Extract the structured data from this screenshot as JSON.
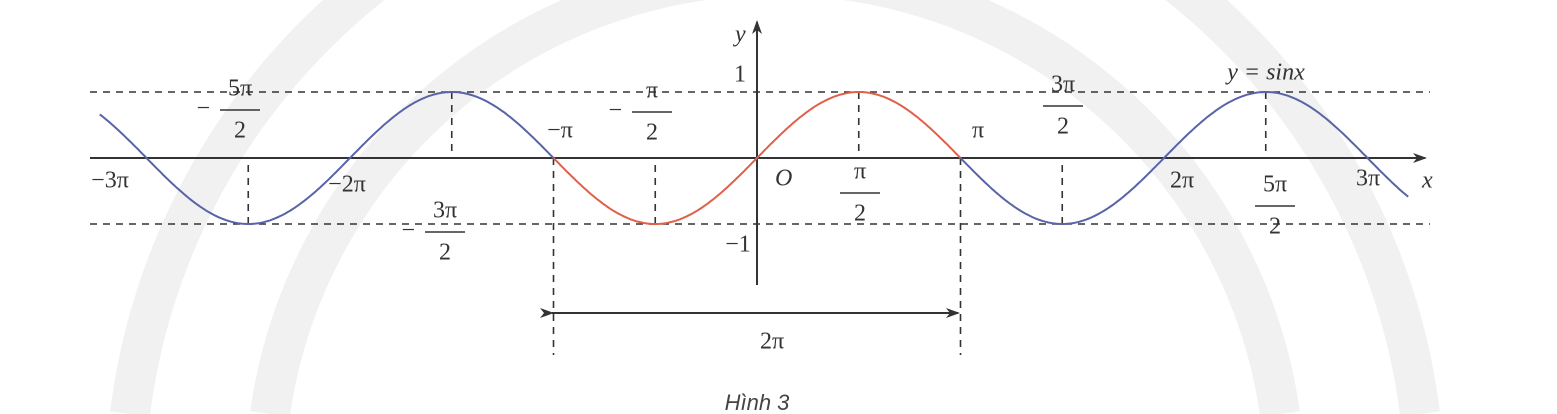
{
  "axes": {
    "x": "x",
    "y": "y",
    "origin": "O"
  },
  "y_labels": [
    "1",
    "−1"
  ],
  "x_labels": [
    "−3π",
    "−2π",
    "−π",
    "π",
    "2π",
    "3π"
  ],
  "fractions": [
    {
      "sign": "−",
      "num": "5π",
      "den": "2"
    },
    {
      "sign": "−",
      "num": "3π",
      "den": "2"
    },
    {
      "sign": "−",
      "num": "π",
      "den": "2"
    },
    {
      "num": "π",
      "den": "2"
    },
    {
      "num": "3π",
      "den": "2"
    },
    {
      "num": "5π",
      "den": "2"
    }
  ],
  "curve_label": "y = sinx",
  "period_label": "2π",
  "caption": "Hình 3"
}
